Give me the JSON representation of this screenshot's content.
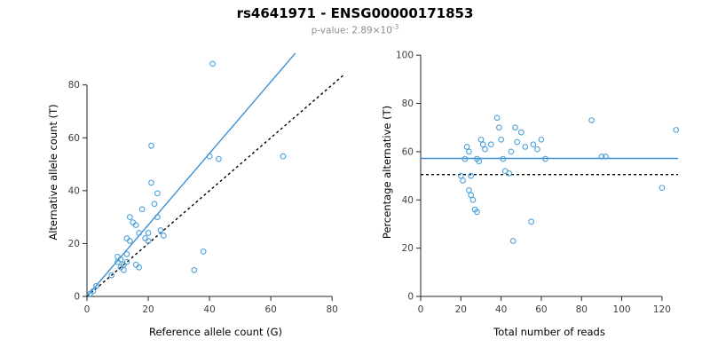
{
  "header": {
    "title": "rs4641971 - ENSG00000171853",
    "pvalue_prefix": "p-value: 2.89×10",
    "pvalue_exponent": "-3"
  },
  "colors": {
    "point": "#4BA1DB",
    "fit_line": "#3E8ED4",
    "reference_line": "#000000",
    "axis": "#262626",
    "tick_text": "#404040",
    "subtitle_text": "#8c8c8c"
  },
  "chart_data": [
    {
      "type": "scatter",
      "title": "",
      "xlabel": "Reference allele count (G)",
      "ylabel": "Alternative allele count (T)",
      "xlim": [
        0,
        84
      ],
      "ylim": [
        0,
        94
      ],
      "xticks": [
        0,
        20,
        40,
        60,
        80
      ],
      "yticks": [
        0,
        20,
        40,
        60,
        80
      ],
      "points": [
        [
          1,
          1
        ],
        [
          2,
          2
        ],
        [
          3,
          4
        ],
        [
          8,
          8
        ],
        [
          10,
          13
        ],
        [
          10,
          15
        ],
        [
          11,
          11
        ],
        [
          11,
          14
        ],
        [
          12,
          10
        ],
        [
          12,
          12
        ],
        [
          13,
          13
        ],
        [
          13,
          16
        ],
        [
          13,
          22
        ],
        [
          14,
          21
        ],
        [
          14,
          30
        ],
        [
          15,
          28
        ],
        [
          16,
          27
        ],
        [
          16,
          12
        ],
        [
          17,
          24
        ],
        [
          17,
          11
        ],
        [
          18,
          33
        ],
        [
          19,
          22
        ],
        [
          20,
          24
        ],
        [
          20,
          21
        ],
        [
          21,
          57
        ],
        [
          21,
          43
        ],
        [
          22,
          35
        ],
        [
          23,
          30
        ],
        [
          24,
          25
        ],
        [
          25,
          23
        ],
        [
          23,
          39
        ],
        [
          35,
          10
        ],
        [
          38,
          17
        ],
        [
          40,
          53
        ],
        [
          43,
          52
        ],
        [
          41,
          88
        ],
        [
          64,
          53
        ]
      ],
      "lines": [
        {
          "name": "fit",
          "style": "solid",
          "color": "#3E8ED4",
          "x1": 0,
          "y1": 0,
          "x2": 68,
          "y2": 92
        },
        {
          "name": "identity",
          "style": "dashed",
          "color": "#000000",
          "x1": 0,
          "y1": 0,
          "x2": 84,
          "y2": 84
        }
      ]
    },
    {
      "type": "scatter",
      "title": "",
      "xlabel": "Total number of reads",
      "ylabel": "Percentage alternative (T)",
      "xlim": [
        0,
        128
      ],
      "ylim": [
        0,
        103
      ],
      "xticks": [
        0,
        20,
        40,
        60,
        80,
        100,
        120
      ],
      "yticks": [
        0,
        20,
        40,
        60,
        80,
        100
      ],
      "points": [
        [
          20,
          50
        ],
        [
          21,
          48
        ],
        [
          22,
          57
        ],
        [
          23,
          62
        ],
        [
          24,
          60
        ],
        [
          24,
          44
        ],
        [
          25,
          42
        ],
        [
          25,
          50
        ],
        [
          26,
          40
        ],
        [
          27,
          36
        ],
        [
          28,
          35
        ],
        [
          28,
          57
        ],
        [
          29,
          56
        ],
        [
          30,
          65
        ],
        [
          31,
          63
        ],
        [
          32,
          61
        ],
        [
          35,
          63
        ],
        [
          38,
          74
        ],
        [
          39,
          70
        ],
        [
          40,
          65
        ],
        [
          41,
          57
        ],
        [
          42,
          52
        ],
        [
          44,
          51
        ],
        [
          45,
          60
        ],
        [
          46,
          23
        ],
        [
          47,
          70
        ],
        [
          48,
          64
        ],
        [
          50,
          68
        ],
        [
          52,
          62
        ],
        [
          55,
          31
        ],
        [
          56,
          63
        ],
        [
          58,
          61
        ],
        [
          60,
          65
        ],
        [
          62,
          57
        ],
        [
          85,
          73
        ],
        [
          90,
          58
        ],
        [
          92,
          58
        ],
        [
          120,
          45
        ],
        [
          127,
          69
        ]
      ],
      "lines": [
        {
          "name": "mean",
          "style": "solid",
          "color": "#3E8ED4",
          "x1": 0,
          "y1": 57.2,
          "x2": 128,
          "y2": 57.2
        },
        {
          "name": "expected",
          "style": "dashed",
          "color": "#000000",
          "x1": 0,
          "y1": 50.5,
          "x2": 128,
          "y2": 50.5
        }
      ]
    }
  ]
}
